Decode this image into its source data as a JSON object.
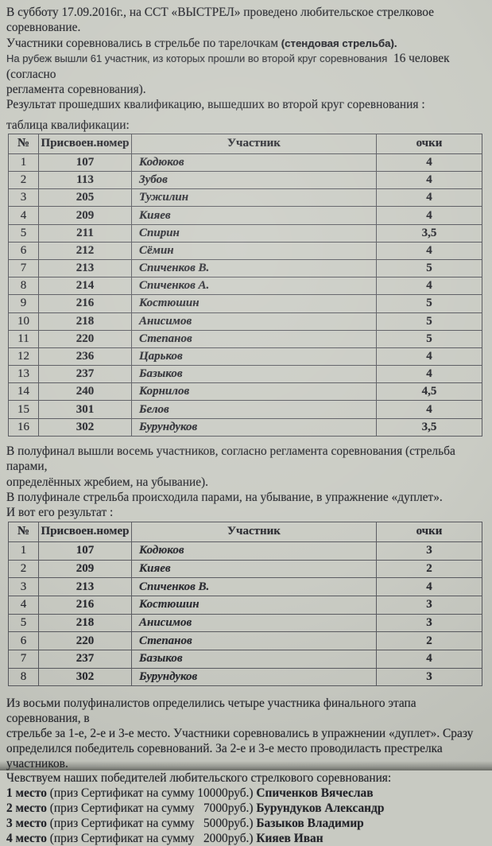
{
  "colors": {
    "paper": "#c8cac2",
    "ink": "#23242a",
    "border": "#55565c"
  },
  "doc": {
    "intro": {
      "line1": "В субботу 17.09.2016г., на ССТ «ВЫСТРЕЛ» проведено любительское стрелковое соревнование.",
      "line2_part1": "Участники соревновались в стрельбе по тарелочкам ",
      "line2_part2": "(стендовая стрельба).",
      "line3_part1": "На рубеж вышли 61 участник, из которых прошли во второй круг соревнования",
      "line3_part2": "  16 человек (согласно",
      "line4": "регламента соревнования).",
      "line5": "Результат прошедших квалификацию, вышедших во второй круг соревнования :"
    },
    "qual_table_label": "таблица квалификации:",
    "qualification_table": {
      "columns": [
        "№",
        "Присвоен.номер",
        "Участник",
        "очки"
      ],
      "rows": [
        [
          "1",
          "107",
          "Кодюков",
          "4"
        ],
        [
          "2",
          "113",
          "Зубов",
          "4"
        ],
        [
          "3",
          "205",
          "Тужилин",
          "4"
        ],
        [
          "4",
          "209",
          "Кияев",
          "4"
        ],
        [
          "5",
          "211",
          "Спирин",
          "3,5"
        ],
        [
          "6",
          "212",
          "Сёмин",
          "4"
        ],
        [
          "7",
          "213",
          "Спиченков В.",
          "5"
        ],
        [
          "8",
          "214",
          "Спиченков А.",
          "4"
        ],
        [
          "9",
          "216",
          "Костюшин",
          "5"
        ],
        [
          "10",
          "218",
          "Анисимов",
          "5"
        ],
        [
          "11",
          "220",
          "Степанов",
          "5"
        ],
        [
          "12",
          "236",
          "Царьков",
          "4"
        ],
        [
          "13",
          "237",
          "Базыков",
          "4"
        ],
        [
          "14",
          "240",
          "Корнилов",
          "4,5"
        ],
        [
          "15",
          "301",
          "Белов",
          "4"
        ],
        [
          "16",
          "302",
          "Бурундуков",
          "3,5"
        ]
      ]
    },
    "semifinal": {
      "line1a": "В полуфинал вышли восемь участников, согласно регламента соревнования (стрельба парами,",
      "line1b": "определённых жребием, на убывание).",
      "line2": "В полуфинале стрельба происходила парами, на убывание, в упражнение «дуплет».",
      "line3": "И вот его результат :"
    },
    "semifinal_table": {
      "columns": [
        "№",
        "Присвоен.номер",
        "Участник",
        "очки"
      ],
      "rows": [
        [
          "1",
          "107",
          "Кодюков",
          "3"
        ],
        [
          "2",
          "209",
          "Кияев",
          "2"
        ],
        [
          "3",
          "213",
          "Спиченков В.",
          "4"
        ],
        [
          "4",
          "216",
          "Костюшин",
          "3"
        ],
        [
          "5",
          "218",
          "Анисимов",
          "3"
        ],
        [
          "6",
          "220",
          "Степанов",
          "2"
        ],
        [
          "7",
          "237",
          "Базыков",
          "4"
        ],
        [
          "8",
          "302",
          "Бурундуков",
          "3"
        ]
      ]
    },
    "final": {
      "l1": "Из восьми полуфиналистов определились четыре участника финального этапа соревнования, в",
      "l2": "стрельбе за 1-е, 2-е и 3-е место. Участники соревновались в упражнении «дуплет». Сразу",
      "l3": "определился победитель соревнований. За 2-е и 3-е место проводиласть престрелка участников.",
      "l4": "Чевствуем наших победителей любительского стрелкового соревнования:",
      "winners": [
        {
          "place": "1 место",
          "prize": " (приз Сертификат на сумму 10000руб.) ",
          "name": "Спиченков Вячеслав"
        },
        {
          "place": "2 место",
          "prize": " (приз Сертификат на сумму   7000руб.) ",
          "name": "Бурундуков Александр"
        },
        {
          "place": "3 место",
          "prize": " (приз Сертификат на сумму   5000руб.) ",
          "name": "Базыков Владимир"
        },
        {
          "place": "4 место",
          "prize": " (приз Сертификат на сумму   2000руб.) ",
          "name": "Кияев Иван"
        }
      ]
    }
  }
}
